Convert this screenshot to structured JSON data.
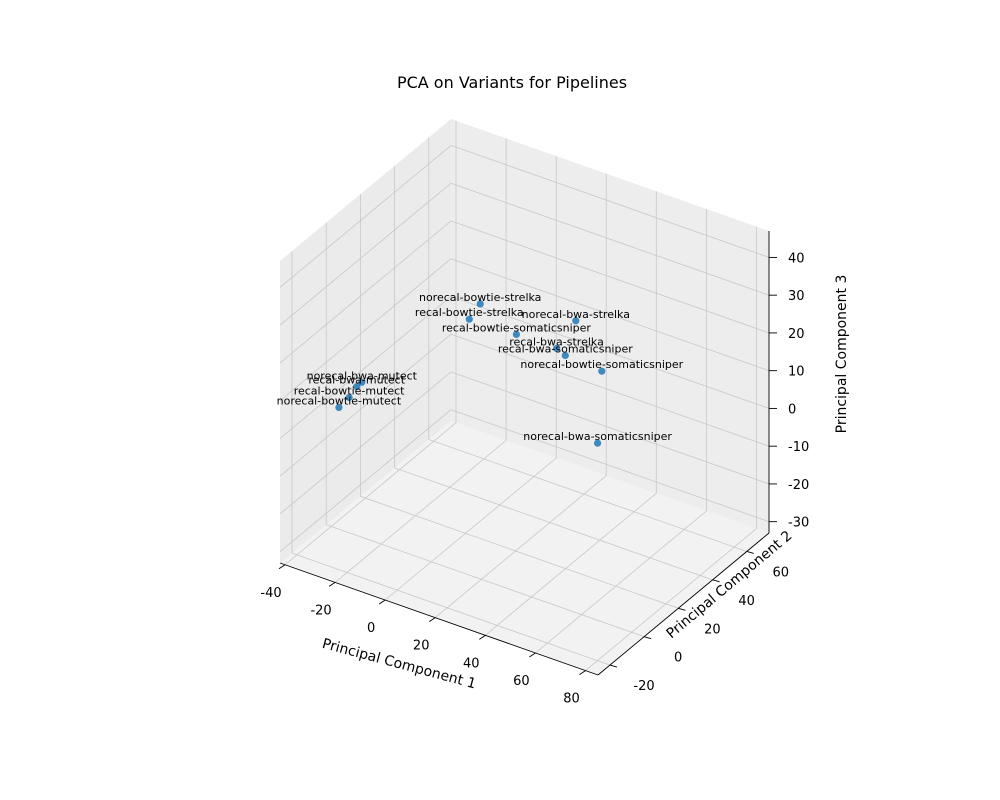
{
  "chart_data": {
    "type": "scatter",
    "projection": "3d",
    "title": "PCA on Variants for Pipelines",
    "xlabel": "Principal Component 1",
    "ylabel": "Principal Component 2",
    "zlabel": "Principal Component 3",
    "xticks": [
      "-40",
      "-20",
      "0",
      "20",
      "40",
      "60",
      "80"
    ],
    "yticks": [
      "-20",
      "0",
      "20",
      "40",
      "60"
    ],
    "zticks": [
      "-30",
      "-20",
      "-10",
      "0",
      "10",
      "20",
      "30",
      "40"
    ],
    "xlim": [
      -42,
      85
    ],
    "ylim": [
      -27,
      73
    ],
    "zlim": [
      -33,
      47
    ],
    "grid": true,
    "color": "#1f77b4",
    "points": [
      {
        "label": "norecal-bwa-strelka",
        "x": 14,
        "y": 64,
        "z": 10
      },
      {
        "label": "recal-bwa-strelka",
        "x": 9,
        "y": 60,
        "z": 3
      },
      {
        "label": "norecal-bowtie-somaticsniper",
        "x": 23,
        "y": 66,
        "z": -2
      },
      {
        "label": "norecal-bowtie-strelka",
        "x": -16,
        "y": 52,
        "z": 12
      },
      {
        "label": "recal-bowtie-strelka",
        "x": -19,
        "y": 50,
        "z": 8
      },
      {
        "label": "recal-bowtie-somaticsniper",
        "x": -7,
        "y": 60,
        "z": 3
      },
      {
        "label": "norecal-bwa-mutect",
        "x": -38,
        "y": 15,
        "z": 0
      },
      {
        "label": "recal-bwa-mutect",
        "x": -38,
        "y": 12,
        "z": 0
      },
      {
        "label": "recal-bowtie-mutect",
        "x": -39,
        "y": 9,
        "z": -2
      },
      {
        "label": "norecal-bowtie-mutect",
        "x": -41,
        "y": 6,
        "z": -4
      },
      {
        "label": "recal-bwa-somaticsniper",
        "x": 61,
        "y": -11,
        "z": 40
      },
      {
        "label": "norecal-bwa-somaticsniper",
        "x": 78,
        "y": -17,
        "z": 23
      }
    ]
  }
}
